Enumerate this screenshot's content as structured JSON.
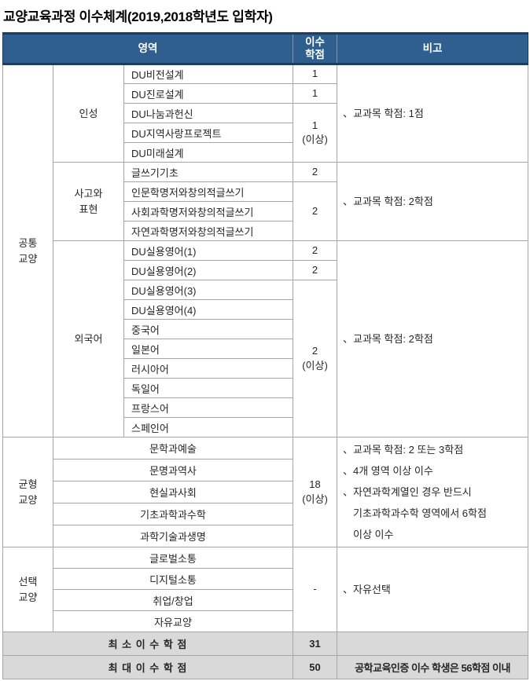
{
  "title": "교양교육과정 이수체계(2019,2018학년도 입학자)",
  "table": {
    "header": {
      "area": "영역",
      "credits": "이수\n학점",
      "note": "비고"
    },
    "common": {
      "category": "공통\n교양",
      "groups": [
        {
          "name": "인성",
          "courses": [
            "DU비전설계",
            "DU진로설계",
            "DU나눔과헌신",
            "DU지역사랑프로젝트",
            "DU미래설계"
          ],
          "credits": [
            "1",
            "1",
            "1\n(이상)"
          ],
          "note": "、교과목 학점: 1점"
        },
        {
          "name": "사고와\n표현",
          "courses": [
            "글쓰기기초",
            "인문학명저와창의적글쓰기",
            "사회과학명저와창의적글쓰기",
            "자연과학명저와창의적글쓰기"
          ],
          "credits": [
            "2",
            "2"
          ],
          "note": "、교과목 학점: 2학점"
        },
        {
          "name": "외국어",
          "courses": [
            "DU실용영어(1)",
            "DU실용영어(2)",
            "DU실용영어(3)",
            "DU실용영어(4)",
            "중국어",
            "일본어",
            "러시아어",
            "독일어",
            "프랑스어",
            "스페인어"
          ],
          "credits": [
            "2",
            "2",
            "2\n(이상)"
          ],
          "note": "、교과목 학점: 2학점"
        }
      ]
    },
    "balanced": {
      "category": "균형\n교양",
      "courses": [
        "문학과예술",
        "문명과역사",
        "현실과사회",
        "기초과학과수학",
        "과학기술과생명"
      ],
      "credit": "18\n(이상)",
      "notes": [
        "、교과목 학점: 2 또는 3학점",
        "、4개 영역 이상 이수",
        "、자연과학계열인 경우 반드시\n기초과학과수학 영역에서 6학점\n이상 이수"
      ]
    },
    "elective": {
      "category": "선택\n교양",
      "courses": [
        "글로벌소통",
        "디지털소통",
        "취업/창업",
        "자유교양"
      ],
      "credit": "-",
      "notes": [
        "、자유선택"
      ]
    },
    "summary": [
      {
        "label": "최 소 이 수 학 점",
        "value": "31",
        "note": ""
      },
      {
        "label": "최 대 이 수 학 점",
        "value": "50",
        "note": "공학교육인증 이수 학생은 56학점 이내"
      }
    ]
  },
  "colors": {
    "header_bg": "#2e5f8e",
    "header_border": "#1d3c61",
    "grid_border": "#a6a6a6",
    "summary_bg": "#d9d9d9"
  }
}
